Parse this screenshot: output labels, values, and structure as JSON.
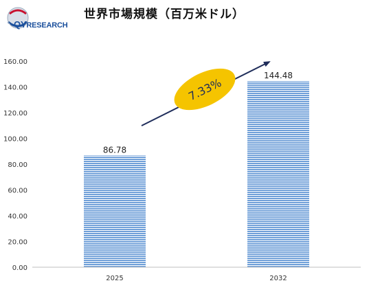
{
  "logo": {
    "text_part1": "QY",
    "text_part2": "RESEARCH"
  },
  "header": {
    "title": "世界市場規模（百万米ドル）"
  },
  "chart_data": {
    "type": "bar",
    "categories": [
      "2025",
      "2032"
    ],
    "values": [
      86.78,
      144.48
    ],
    "value_labels": [
      "86.78",
      "144.48"
    ],
    "ylim": [
      0,
      160
    ],
    "yticks": [
      "0.00",
      "20.00",
      "40.00",
      "60.00",
      "80.00",
      "100.00",
      "120.00",
      "140.00",
      "160.00"
    ],
    "grid": false,
    "bar_color": "#6f9fd8",
    "annotation": {
      "text": "7.33%",
      "fill": "#f5c400",
      "arrow_color": "#1f2d5a"
    }
  }
}
